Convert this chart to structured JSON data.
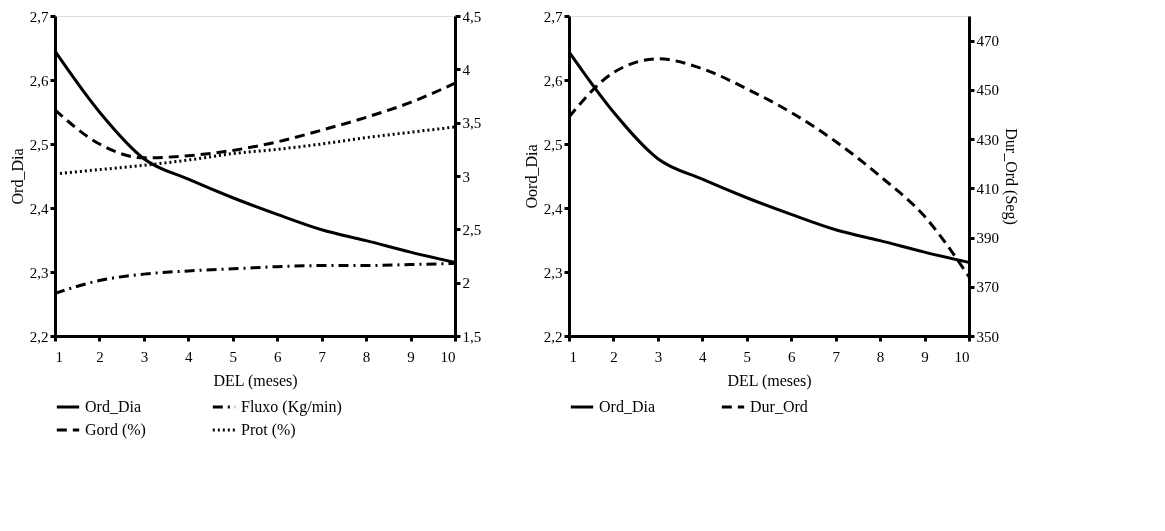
{
  "chart_data": [
    {
      "type": "line",
      "xlabel": "DEL (meses)",
      "ylabel": "Ord_Dia",
      "grid": false,
      "legend": "bottom",
      "xlim": [
        1,
        10
      ],
      "xticks": [
        1,
        2,
        3,
        4,
        5,
        6,
        7,
        8,
        9,
        10
      ],
      "ylim": [
        2.2,
        2.7
      ],
      "yticks": [
        {
          "value": 2.2,
          "label": "2,2"
        },
        {
          "value": 2.3,
          "label": "2,3"
        },
        {
          "value": 2.4,
          "label": "2,4"
        },
        {
          "value": 2.5,
          "label": "2,5"
        },
        {
          "value": 2.6,
          "label": "2,6"
        },
        {
          "value": 2.7,
          "label": "2,7"
        }
      ],
      "y2lim": [
        1.5,
        4.5
      ],
      "y2ticks": [
        {
          "value": 1.5,
          "label": "1,5"
        },
        2,
        {
          "value": 2.5,
          "label": "2,5"
        },
        3,
        {
          "value": 3.5,
          "label": "3,5"
        },
        4,
        {
          "value": 4.5,
          "label": "4,5"
        }
      ],
      "x": [
        1,
        2,
        3,
        4,
        5,
        6,
        7,
        8,
        9,
        10
      ],
      "series": [
        {
          "name": "Ord_Dia",
          "color": "#000000",
          "line_style": "solid",
          "values": [
            2.645,
            2.55,
            2.477,
            2.445,
            2.416,
            2.39,
            2.366,
            2.349,
            2.331,
            2.315
          ]
        },
        {
          "name": "Fluxo (Kg/min)",
          "color": "#000000",
          "line_style": "dashdot",
          "axis": "y2",
          "values": [
            1.9,
            2.02,
            2.08,
            2.11,
            2.13,
            2.15,
            2.16,
            2.16,
            2.17,
            2.18
          ]
        },
        {
          "name": "Gord (%)",
          "color": "#000000",
          "line_style": "dashed",
          "axis": "y2",
          "values": [
            3.62,
            3.3,
            3.17,
            3.19,
            3.24,
            3.32,
            3.43,
            3.55,
            3.69,
            3.87
          ]
        },
        {
          "name": "Prot (%)",
          "color": "#000000",
          "line_style": "dotted",
          "axis": "y2",
          "values": [
            3.02,
            3.06,
            3.1,
            3.15,
            3.21,
            3.25,
            3.3,
            3.36,
            3.41,
            3.46
          ]
        }
      ]
    },
    {
      "type": "line",
      "xlabel": "DEL  (meses)",
      "ylabel": "Oord_Dia",
      "y2label": "Dur_Ord (Seg)",
      "grid": false,
      "legend": "bottom",
      "xlim": [
        1,
        10
      ],
      "xticks": [
        1,
        2,
        3,
        4,
        5,
        6,
        7,
        8,
        9,
        10
      ],
      "ylim": [
        2.2,
        2.7
      ],
      "yticks": [
        {
          "value": 2.2,
          "label": "2,2"
        },
        {
          "value": 2.3,
          "label": "2,3"
        },
        {
          "value": 2.4,
          "label": "2,4"
        },
        {
          "value": 2.5,
          "label": "2,5"
        },
        {
          "value": 2.6,
          "label": "2,6"
        },
        {
          "value": 2.7,
          "label": "2,7"
        }
      ],
      "y2lim": [
        350,
        480
      ],
      "y2ticks": [
        350,
        370,
        390,
        410,
        430,
        450,
        470
      ],
      "x": [
        1,
        2,
        3,
        4,
        5,
        6,
        7,
        8,
        9,
        10
      ],
      "series": [
        {
          "name": "Ord_Dia",
          "color": "#000000",
          "line_style": "solid",
          "values": [
            2.644,
            2.55,
            2.477,
            2.445,
            2.416,
            2.39,
            2.366,
            2.349,
            2.331,
            2.315
          ]
        },
        {
          "name": "Dur_Ord",
          "color": "#000000",
          "line_style": "dashed",
          "axis": "y2",
          "values": [
            439,
            457,
            462.6,
            458.6,
            450.4,
            440.8,
            429,
            414.9,
            398.6,
            374.1
          ]
        }
      ]
    }
  ]
}
